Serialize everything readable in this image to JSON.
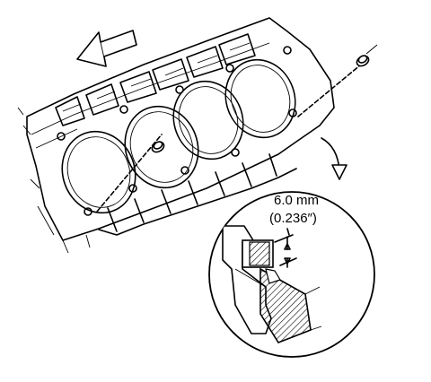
{
  "callout": {
    "dimension_mm": "6.0 mm",
    "dimension_in": "(0.236″)"
  }
}
